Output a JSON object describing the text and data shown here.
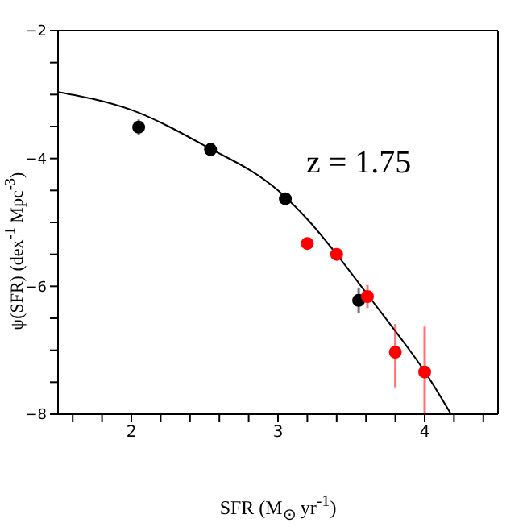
{
  "chart_data": {
    "type": "scatter",
    "xlabel": "SFR (M$_{⊙}$ yr$^{-1}$)",
    "ylabel": "ψ(SFR) (dex$^{-1}$ Mpc$^{-3}$)",
    "annotations": [
      "z = 1.75"
    ],
    "xlim": [
      1.5,
      4.5
    ],
    "ylim": [
      -8,
      -2
    ],
    "xticks": [
      {
        "value": 1.6,
        "label": null
      },
      {
        "value": 1.8,
        "label": null
      },
      2,
      {
        "value": 2.2,
        "label": null
      },
      {
        "value": 2.4,
        "label": null
      },
      {
        "value": 2.6,
        "label": null
      },
      {
        "value": 2.8,
        "label": null
      },
      3,
      {
        "value": 3.2,
        "label": null
      },
      {
        "value": 3.4,
        "label": null
      },
      {
        "value": 3.6,
        "label": null
      },
      {
        "value": 3.8,
        "label": null
      },
      4,
      {
        "value": 4.2,
        "label": null
      },
      {
        "value": 4.4,
        "label": null
      }
    ],
    "yticks": [
      -8,
      {
        "value": -7.5,
        "label": null
      },
      {
        "value": -7,
        "label": null
      },
      {
        "value": -6.5,
        "label": null
      },
      -6,
      {
        "value": -5.5,
        "label": null
      },
      {
        "value": -5,
        "label": null
      },
      {
        "value": -4.5,
        "label": null
      },
      -4,
      {
        "value": -3.5,
        "label": null
      },
      {
        "value": -3,
        "label": null
      },
      {
        "value": -2.5,
        "label": null
      },
      -2
    ],
    "marker": "circle",
    "series": [
      {
        "type": "line",
        "color": "#000000",
        "marker": "none",
        "x": [
          1.5,
          2.0,
          2.5,
          3.0,
          3.2,
          3.4,
          3.6,
          3.8,
          4.0,
          4.18
        ],
        "values": [
          -2.96,
          -3.24,
          -3.8,
          -4.5,
          -4.95,
          -5.5,
          -6.1,
          -6.7,
          -7.33,
          -8.0
        ]
      },
      {
        "color": "#000000",
        "x": [
          2.05,
          2.54,
          3.05,
          3.55
        ],
        "values": [
          -3.51,
          -3.86,
          -4.63,
          -6.22
        ],
        "errors": [
          0.12,
          0.1,
          null,
          0.2
        ]
      },
      {
        "color": "#ff0000",
        "x": [
          3.2,
          3.4,
          3.61,
          3.8,
          4.0
        ],
        "values": [
          -5.33,
          -5.5,
          -6.16,
          -7.03,
          -7.34
        ],
        "errors": [
          null,
          null,
          0.18,
          [
            -7.58,
            -6.59
          ],
          [
            -7.98,
            -6.63
          ]
        ]
      }
    ]
  }
}
